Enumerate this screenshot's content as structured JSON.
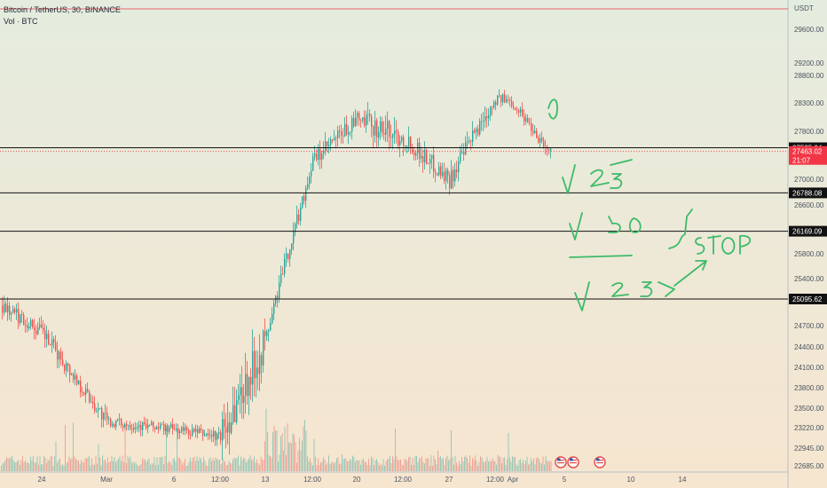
{
  "header": {
    "symbol_line": "Bitcoin / TetherUS, 30, BINANCE",
    "volume_line": "Vol · BTC"
  },
  "colors": {
    "background_top": "#e4ecdf",
    "background_bottom": "#f6e5cf",
    "up_candle": "#26a69a",
    "down_candle": "#ef5350",
    "level_line": "#111111",
    "current_price": "#f23645",
    "drawing": "#3dbb6a"
  },
  "chart_data": {
    "type": "candlestick",
    "y_axis_unit": "USDT",
    "y_tick_labels": [
      "29600.00",
      "29200.00",
      "28800.00",
      "28300.00",
      "27800.00",
      "27000.00",
      "26600.00",
      "25800.00",
      "25400.00",
      "24700.00",
      "24400.00",
      "24100.00",
      "23800.00",
      "23500.00",
      "23220.00",
      "22945.00",
      "22685.00"
    ],
    "x_tick_labels": [
      "24",
      "Mar",
      "6",
      "12:00",
      "13",
      "12:00",
      "20",
      "12:00",
      "27",
      "12:00",
      "Apr",
      "5",
      "10",
      "14"
    ],
    "horizontal_levels": [
      27525.94,
      26788.08,
      26169.09,
      25095.62
    ],
    "current_price": 27463.02,
    "countdown": "21:07",
    "price_path": [
      {
        "x": "24",
        "low": 24300,
        "high": 25500,
        "close": 24600
      },
      {
        "x": "Mar",
        "low": 22700,
        "high": 23900,
        "close": 23300
      },
      {
        "x": "6",
        "low": 22900,
        "high": 23700,
        "close": 23200
      },
      {
        "x": "12:00",
        "low": 22700,
        "high": 23500,
        "close": 23100
      },
      {
        "x": "13",
        "low": 23300,
        "high": 26200,
        "close": 24500
      },
      {
        "x": "12:00",
        "low": 26400,
        "high": 27800,
        "close": 27300
      },
      {
        "x": "20",
        "low": 27000,
        "high": 28600,
        "close": 28000
      },
      {
        "x": "12:00",
        "low": 26700,
        "high": 28900,
        "close": 27700
      },
      {
        "x": "27",
        "low": 26650,
        "high": 28300,
        "close": 27000
      },
      {
        "x": "12:00",
        "low": 27600,
        "high": 29200,
        "close": 28400
      },
      {
        "x": "Apr",
        "low": 27600,
        "high": 28700,
        "close": 28300
      },
      {
        "x": "5",
        "low": 27400,
        "high": 28600,
        "close": 27463.02
      }
    ],
    "annotations": [
      "√ 25",
      "√ 50",
      "√ STOP",
      "√ 25"
    ]
  }
}
